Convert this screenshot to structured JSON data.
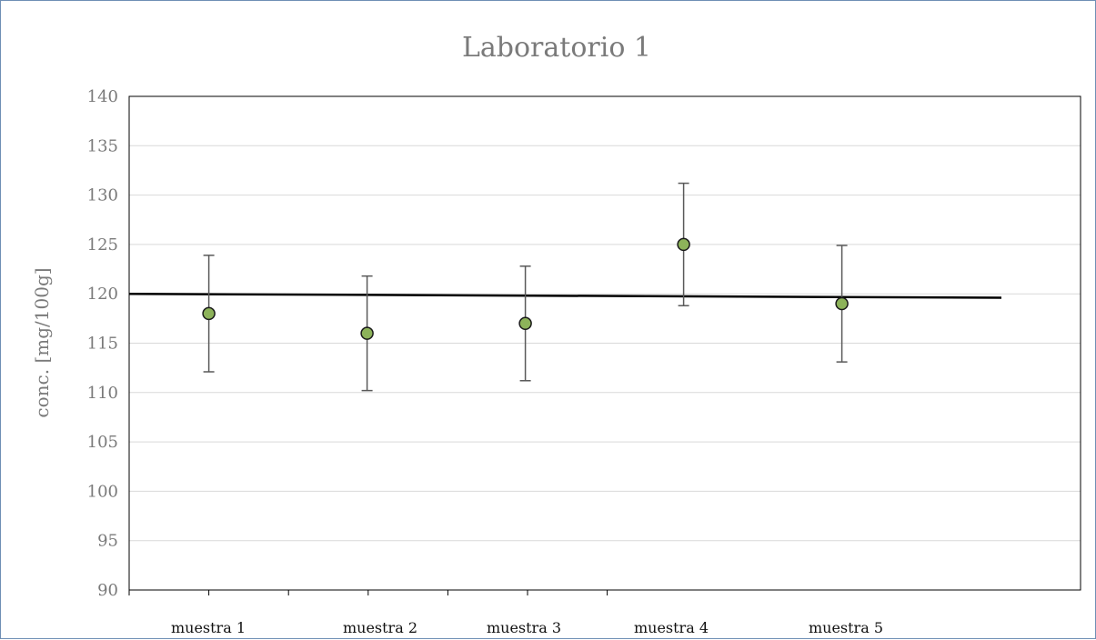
{
  "chart_data": {
    "type": "scatter",
    "title": "Laboratorio 1",
    "xlabel": "",
    "ylabel": "conc. [mg/100g]",
    "ylim": [
      90,
      140
    ],
    "yticks": [
      90,
      95,
      100,
      105,
      110,
      115,
      120,
      125,
      130,
      135,
      140
    ],
    "grid": true,
    "legend": "none",
    "categories": [
      "muestra 1",
      "muestra  2",
      "muestra 3",
      "muestra 4",
      "muestra 5"
    ],
    "series": [
      {
        "values": [
          118,
          116,
          117,
          125,
          119
        ],
        "error_low": [
          112.1,
          110.2,
          111.2,
          118.8,
          113.1
        ],
        "error_high": [
          123.9,
          121.8,
          122.8,
          131.2,
          124.9
        ],
        "marker_color": "#8db35a",
        "marker_edge": "#1a1a1a",
        "error_color": "#595959"
      }
    ],
    "reference_line": {
      "y_start": 120.0,
      "y_end": 119.6,
      "color": "#000000"
    }
  }
}
